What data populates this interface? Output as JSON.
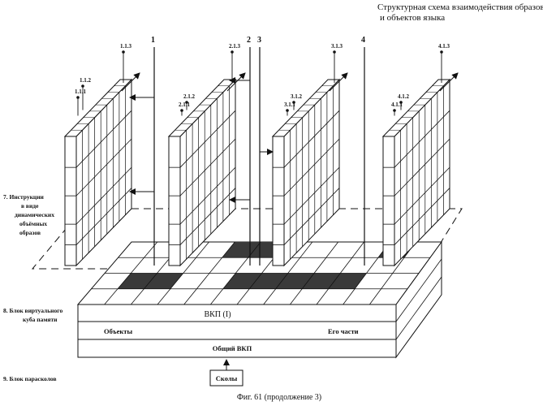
{
  "title": {
    "line1": "Структурная схема взаимодействия образов",
    "line2": "и объектов языка"
  },
  "caption": "Фиг. 61 (продолжение 3)",
  "left_labels": {
    "instructions": [
      "7. Инструкции",
      "в виде",
      "динамических",
      "объёмных",
      "образов"
    ],
    "virtual_cube": [
      "8. Блок виртуального",
      "куба памяти"
    ],
    "parasoloc": "9. Блок парасколов"
  },
  "block": {
    "vkp": "ВКП (I)",
    "objects": "Объекты",
    "parts": "Его части",
    "common": "Общий ВКП"
  },
  "source": "Сколы",
  "vertical_lines": [
    "1",
    "2",
    "3",
    "4"
  ],
  "panels": [
    {
      "top": "1.1.3",
      "mid": "1.1.2",
      "low": "1.1.1"
    },
    {
      "top": "2.1.3",
      "mid": "2.1.2",
      "low": "2.1.1"
    },
    {
      "top": "3.1.3",
      "mid": "3.1.2",
      "low": "3.1.1"
    },
    {
      "top": "4.1.3",
      "mid": "4.1.2",
      "low": "4.1.1"
    }
  ],
  "colors": {
    "ink": "#111111",
    "shade": "#3a3a3a",
    "paper": "#ffffff"
  }
}
